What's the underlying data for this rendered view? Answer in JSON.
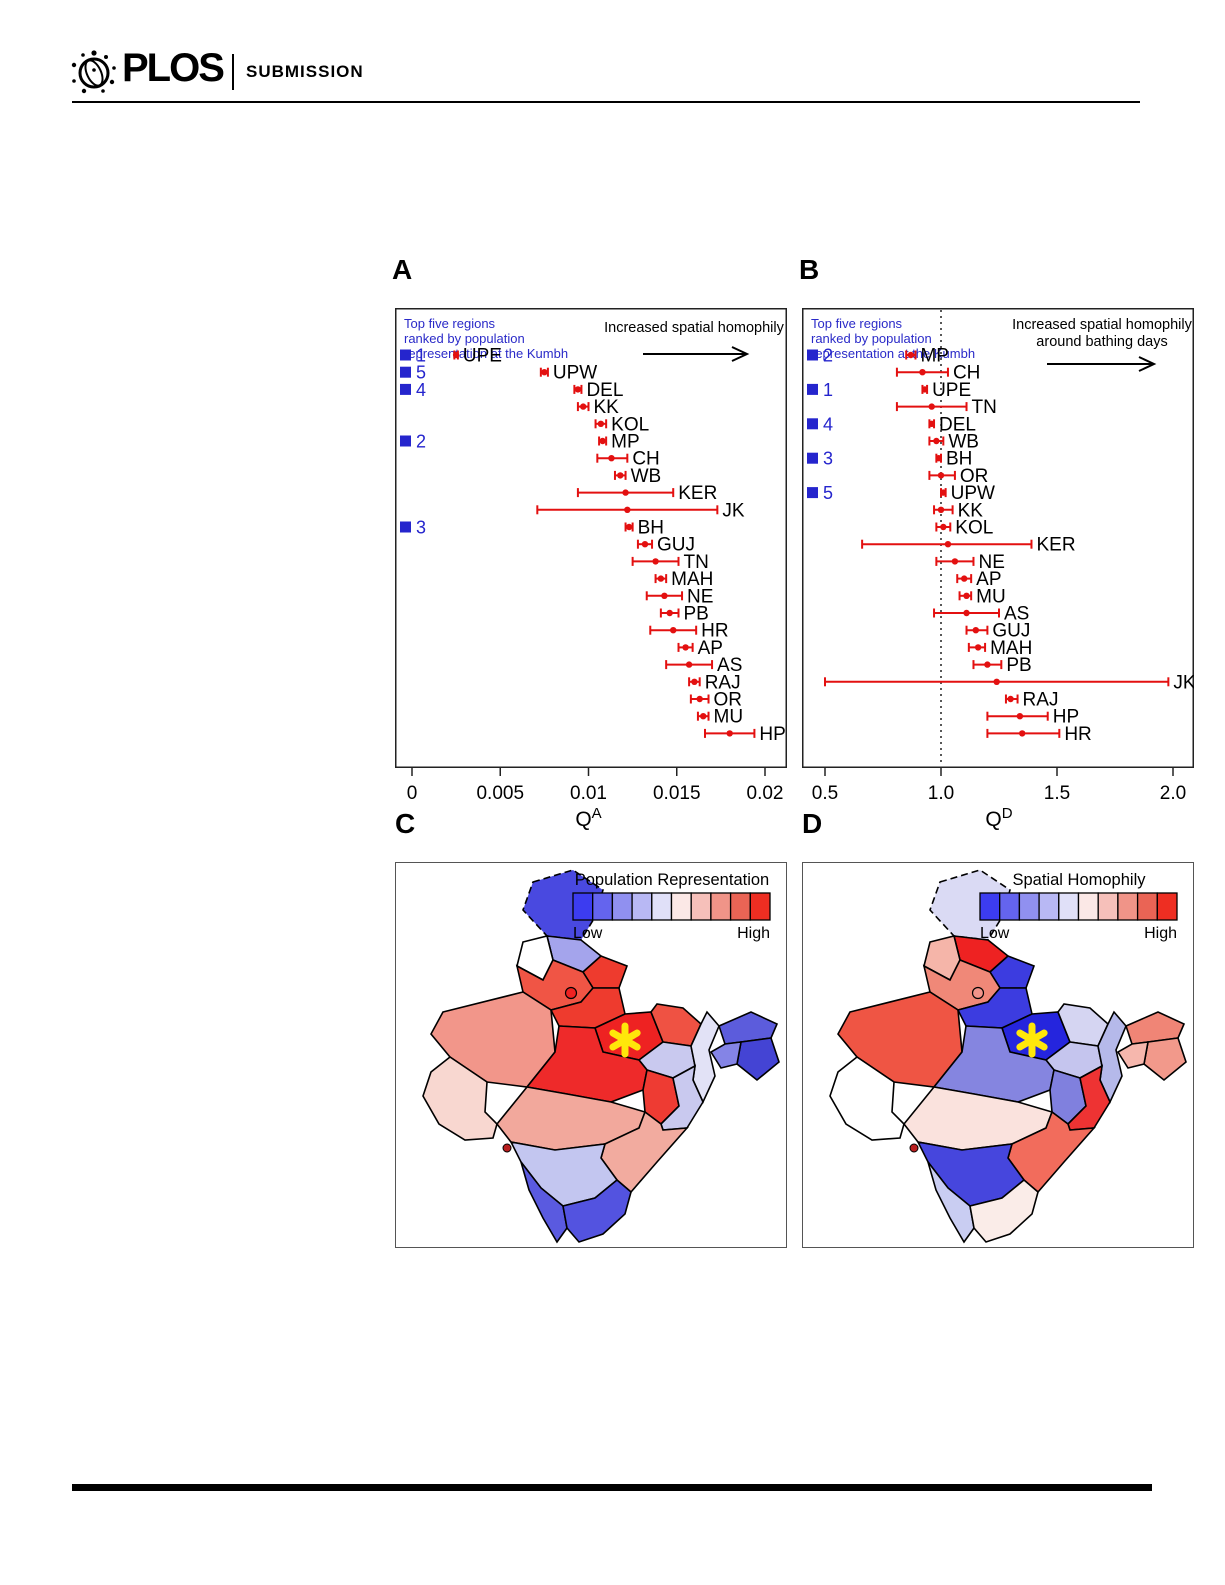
{
  "header": {
    "brand": "PLOS",
    "label": "SUBMISSION"
  },
  "figure": {
    "letters": [
      "A",
      "B",
      "C",
      "D"
    ]
  },
  "chart_data": [
    {
      "id": "A",
      "type": "scatter",
      "title": "",
      "xlabel": {
        "base": "Q",
        "sup": "A"
      },
      "xlim": [
        0,
        0.02
      ],
      "x_ticks": [
        {
          "value": 0,
          "label": "0"
        },
        {
          "value": 0.005,
          "label": "0.005"
        },
        {
          "value": 0.01,
          "label": "0.01"
        },
        {
          "value": 0.015,
          "label": "0.015"
        },
        {
          "value": 0.02,
          "label": "0.02"
        }
      ],
      "ref_line": null,
      "annotation_lines": [
        "Top five regions",
        "ranked by population",
        "representation at the Kumbh"
      ],
      "arrow_lines": [
        "Increased spatial homophily"
      ],
      "point_color": "#e31010",
      "rank_color": "#2525cd",
      "rows": [
        {
          "label": "UPE",
          "value": 0.0025,
          "lo": 0.0024,
          "hi": 0.0026,
          "rank": 1
        },
        {
          "label": "UPW",
          "value": 0.0075,
          "lo": 0.0073,
          "hi": 0.0077,
          "rank": 5
        },
        {
          "label": "DEL",
          "value": 0.0094,
          "lo": 0.0092,
          "hi": 0.0096,
          "rank": 4
        },
        {
          "label": "KK",
          "value": 0.0097,
          "lo": 0.0094,
          "hi": 0.01,
          "rank": null
        },
        {
          "label": "KOL",
          "value": 0.0107,
          "lo": 0.0104,
          "hi": 0.011,
          "rank": null
        },
        {
          "label": "MP",
          "value": 0.0108,
          "lo": 0.0106,
          "hi": 0.011,
          "rank": 2
        },
        {
          "label": "CH",
          "value": 0.0113,
          "lo": 0.0105,
          "hi": 0.0122,
          "rank": null
        },
        {
          "label": "WB",
          "value": 0.0118,
          "lo": 0.0115,
          "hi": 0.0121,
          "rank": null
        },
        {
          "label": "KER",
          "value": 0.0121,
          "lo": 0.0094,
          "hi": 0.0148,
          "rank": null
        },
        {
          "label": "JK",
          "value": 0.0122,
          "lo": 0.0071,
          "hi": 0.0173,
          "rank": null
        },
        {
          "label": "BH",
          "value": 0.0123,
          "lo": 0.0121,
          "hi": 0.0125,
          "rank": 3
        },
        {
          "label": "GUJ",
          "value": 0.0132,
          "lo": 0.0128,
          "hi": 0.0136,
          "rank": null
        },
        {
          "label": "TN",
          "value": 0.0138,
          "lo": 0.0125,
          "hi": 0.0151,
          "rank": null
        },
        {
          "label": "MAH",
          "value": 0.0141,
          "lo": 0.0138,
          "hi": 0.0144,
          "rank": null
        },
        {
          "label": "NE",
          "value": 0.0143,
          "lo": 0.0133,
          "hi": 0.0153,
          "rank": null
        },
        {
          "label": "PB",
          "value": 0.0146,
          "lo": 0.0141,
          "hi": 0.0151,
          "rank": null
        },
        {
          "label": "HR",
          "value": 0.0148,
          "lo": 0.0135,
          "hi": 0.0161,
          "rank": null
        },
        {
          "label": "AP",
          "value": 0.0155,
          "lo": 0.0151,
          "hi": 0.0159,
          "rank": null
        },
        {
          "label": "AS",
          "value": 0.0157,
          "lo": 0.0144,
          "hi": 0.017,
          "rank": null
        },
        {
          "label": "RAJ",
          "value": 0.016,
          "lo": 0.0157,
          "hi": 0.0163,
          "rank": null
        },
        {
          "label": "OR",
          "value": 0.0163,
          "lo": 0.0158,
          "hi": 0.0168,
          "rank": null
        },
        {
          "label": "MU",
          "value": 0.0165,
          "lo": 0.0162,
          "hi": 0.0168,
          "rank": null
        },
        {
          "label": "HP",
          "value": 0.018,
          "lo": 0.0166,
          "hi": 0.0194,
          "rank": null
        }
      ]
    },
    {
      "id": "B",
      "type": "scatter",
      "title": "",
      "xlabel": {
        "base": "Q",
        "sup": "D"
      },
      "xlim": [
        0.5,
        2.0
      ],
      "x_ticks": [
        {
          "value": 0.5,
          "label": "0.5"
        },
        {
          "value": 1.0,
          "label": "1.0"
        },
        {
          "value": 1.5,
          "label": "1.5"
        },
        {
          "value": 2.0,
          "label": "2.0"
        }
      ],
      "ref_line": 1.0,
      "annotation_lines": [
        "Top five regions",
        "ranked by population",
        "representation at the Kumbh"
      ],
      "arrow_lines": [
        "Increased spatial homophily",
        "around bathing days"
      ],
      "point_color": "#e31010",
      "rank_color": "#2525cd",
      "rows": [
        {
          "label": "MP",
          "value": 0.87,
          "lo": 0.85,
          "hi": 0.89,
          "rank": 2
        },
        {
          "label": "CH",
          "value": 0.92,
          "lo": 0.81,
          "hi": 1.03,
          "rank": null
        },
        {
          "label": "UPE",
          "value": 0.93,
          "lo": 0.92,
          "hi": 0.94,
          "rank": 1
        },
        {
          "label": "TN",
          "value": 0.96,
          "lo": 0.81,
          "hi": 1.11,
          "rank": null
        },
        {
          "label": "DEL",
          "value": 0.96,
          "lo": 0.95,
          "hi": 0.97,
          "rank": 4
        },
        {
          "label": "WB",
          "value": 0.98,
          "lo": 0.95,
          "hi": 1.01,
          "rank": null
        },
        {
          "label": "BH",
          "value": 0.99,
          "lo": 0.98,
          "hi": 1.0,
          "rank": 3
        },
        {
          "label": "OR",
          "value": 1.0,
          "lo": 0.95,
          "hi": 1.06,
          "rank": null
        },
        {
          "label": "UPW",
          "value": 1.01,
          "lo": 1.0,
          "hi": 1.02,
          "rank": 5
        },
        {
          "label": "KK",
          "value": 1.0,
          "lo": 0.97,
          "hi": 1.05,
          "rank": null
        },
        {
          "label": "KOL",
          "value": 1.01,
          "lo": 0.98,
          "hi": 1.04,
          "rank": null
        },
        {
          "label": "KER",
          "value": 1.03,
          "lo": 0.66,
          "hi": 1.39,
          "rank": null
        },
        {
          "label": "NE",
          "value": 1.06,
          "lo": 0.98,
          "hi": 1.14,
          "rank": null
        },
        {
          "label": "AP",
          "value": 1.1,
          "lo": 1.07,
          "hi": 1.13,
          "rank": null
        },
        {
          "label": "MU",
          "value": 1.11,
          "lo": 1.08,
          "hi": 1.13,
          "rank": null
        },
        {
          "label": "AS",
          "value": 1.11,
          "lo": 0.97,
          "hi": 1.25,
          "rank": null
        },
        {
          "label": "GUJ",
          "value": 1.15,
          "lo": 1.11,
          "hi": 1.2,
          "rank": null
        },
        {
          "label": "MAH",
          "value": 1.16,
          "lo": 1.12,
          "hi": 1.19,
          "rank": null
        },
        {
          "label": "PB",
          "value": 1.2,
          "lo": 1.14,
          "hi": 1.26,
          "rank": null
        },
        {
          "label": "JK",
          "value": 1.24,
          "lo": 0.5,
          "hi": 1.98,
          "rank": null
        },
        {
          "label": "RAJ",
          "value": 1.3,
          "lo": 1.28,
          "hi": 1.33,
          "rank": null
        },
        {
          "label": "HP",
          "value": 1.34,
          "lo": 1.2,
          "hi": 1.46,
          "rank": null
        },
        {
          "label": "HR",
          "value": 1.35,
          "lo": 1.2,
          "hi": 1.51,
          "rank": null
        }
      ]
    },
    {
      "id": "C",
      "type": "choropleth-map",
      "title": "Population Representation",
      "legend": {
        "low": "Low",
        "high": "High",
        "colors": [
          "#3c3cf0",
          "#6464ee",
          "#9090f0",
          "#b8b8f4",
          "#e0e0f8",
          "#fbe8e6",
          "#f6c0ba",
          "#f09488",
          "#ea6455",
          "#ee2e22"
        ]
      },
      "marker": {
        "symbol": "asterisk",
        "color": "#ffe70a"
      },
      "region_fills": {
        "jk": "#4949e0",
        "hp": "#a4a4ec",
        "pb": "#ffffff",
        "uk": "#ee3b2e",
        "hr": "#f05545",
        "del": "#ee2222",
        "raj": "#f2968a",
        "guj": "#f8d7d0",
        "upw": "#ee3b2e",
        "upe": "#ee2222",
        "mp": "#ee2a2a",
        "chh": "#ee3b33",
        "bh": "#ef5243",
        "jh": "#c9c9ef",
        "wb": "#e2e2f6",
        "ne1": "#5c5cdc",
        "ne2": "#4444d4",
        "ne3": "#8484e6",
        "or": "#c9c9ef",
        "mah": "#f2a89c",
        "ap": "#f2ab9f",
        "kk": "#c3c6f0",
        "ker": "#5a5ae0",
        "tn": "#5353e0",
        "goa": "#b81f1f"
      }
    },
    {
      "id": "D",
      "type": "choropleth-map",
      "title": "Spatial Homophily",
      "legend": {
        "low": "Low",
        "high": "High",
        "colors": [
          "#3c3cf0",
          "#6464ee",
          "#9090f0",
          "#b8b8f4",
          "#e0e0f8",
          "#fbe8e6",
          "#f6c0ba",
          "#f09488",
          "#ea6455",
          "#ee2e22"
        ]
      },
      "marker": {
        "symbol": "asterisk",
        "color": "#ffe70a"
      },
      "region_fills": {
        "jk": "#dadaf4",
        "hp": "#ee2222",
        "pb": "#f5b5a9",
        "uk": "#3c3ce0",
        "hr": "#f08878",
        "del": "#f2948a",
        "raj": "#ef5544",
        "guj": "#ffffff",
        "upw": "#3c3ce0",
        "upe": "#2525dd",
        "mp": "#8585e0",
        "chh": "#8080de",
        "bh": "#d5d5f2",
        "jh": "#c5c5ee",
        "wb": "#b5b9ea",
        "ne1": "#f08576",
        "ne2": "#f2998b",
        "ne3": "#f6b7ad",
        "or": "#ee3333",
        "mah": "#fae2dd",
        "ap": "#f26c5c",
        "kk": "#4646dd",
        "ker": "#c9cdf2",
        "tn": "#faece8",
        "goa": "#b81f1f"
      }
    }
  ]
}
